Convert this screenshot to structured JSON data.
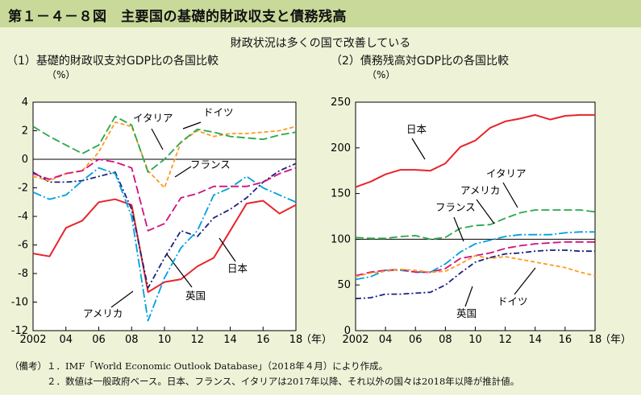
{
  "header": {
    "title": "第１－４－８図　主要国の基礎的財政収支と債務残高"
  },
  "subtitle": "財政状況は多くの国で改善している",
  "notes": [
    "（備考）１．IMF「World Economic Outlook Database」（2018年４月）により作成。",
    "　　　　２．数値は一般政府ベース。日本、フランス、イタリアは2017年以降、それ以外の国々は2018年以降が推計値。"
  ],
  "colors": {
    "japan": "#e8242b",
    "uk": "#1a237e",
    "usa": "#00a0dc",
    "germany": "#ff9a1e",
    "italy": "#2ba84a",
    "france": "#d0107e"
  },
  "chart_data": [
    {
      "type": "line",
      "title": "（1）基礎的財政収支対GDP比の各国比較",
      "unit": "（%）",
      "xlabel_suffix": "（年）",
      "x": [
        2002,
        2003,
        2004,
        2005,
        2006,
        2007,
        2008,
        2009,
        2010,
        2011,
        2012,
        2013,
        2014,
        2015,
        2016,
        2017,
        2018
      ],
      "xticks": [
        2002,
        2004,
        2006,
        2008,
        2010,
        2012,
        2014,
        2016,
        2018
      ],
      "xtick_labels": [
        "2002",
        "04",
        "06",
        "08",
        "10",
        "12",
        "14",
        "16",
        "18"
      ],
      "ylim": [
        -12,
        4
      ],
      "yticks": [
        4,
        2,
        0,
        -2,
        -4,
        -6,
        -8,
        -10,
        -12
      ],
      "reference_line": 0,
      "series": [
        {
          "name": "日本",
          "key": "japan",
          "dash": "solid",
          "values": [
            -6.6,
            -6.8,
            -4.8,
            -4.3,
            -3.0,
            -2.8,
            -3.2,
            -9.3,
            -8.6,
            -8.4,
            -7.5,
            -6.9,
            -5.0,
            -3.1,
            -2.9,
            -3.8,
            -3.2
          ]
        },
        {
          "name": "英国",
          "key": "uk",
          "dash": "dashdot",
          "values": [
            -0.9,
            -1.6,
            -1.6,
            -1.5,
            -1.2,
            -0.9,
            -3.5,
            -9.0,
            -6.9,
            -5.0,
            -5.4,
            -4.1,
            -3.5,
            -2.7,
            -1.6,
            -0.8,
            -0.3
          ]
        },
        {
          "name": "アメリカ",
          "key": "usa",
          "dash": "longdashdot",
          "values": [
            -2.3,
            -2.8,
            -2.5,
            -1.5,
            -0.6,
            -1.0,
            -4.0,
            -11.3,
            -8.3,
            -6.2,
            -5.0,
            -2.5,
            -2.0,
            -1.2,
            -2.0,
            -2.5,
            -3.0
          ]
        },
        {
          "name": "ドイツ",
          "key": "germany",
          "dash": "dash",
          "values": [
            -1.2,
            -1.5,
            -1.0,
            -0.8,
            0.5,
            2.6,
            2.3,
            -0.8,
            -2.0,
            1.2,
            2.0,
            1.6,
            1.8,
            1.8,
            1.9,
            2.0,
            2.3
          ]
        },
        {
          "name": "イタリア",
          "key": "italy",
          "dash": "longdash",
          "values": [
            2.3,
            1.6,
            1.0,
            0.4,
            1.0,
            3.0,
            2.4,
            -0.9,
            0.0,
            1.2,
            2.1,
            1.9,
            1.6,
            1.5,
            1.4,
            1.7,
            1.9
          ]
        },
        {
          "name": "フランス",
          "key": "france",
          "dash": "longdash",
          "values": [
            -1.0,
            -1.4,
            -1.0,
            -0.8,
            0.0,
            -0.2,
            -0.6,
            -5.0,
            -4.5,
            -2.7,
            -2.4,
            -1.9,
            -1.9,
            -1.9,
            -1.6,
            -1.0,
            -0.6
          ]
        }
      ]
    },
    {
      "type": "line",
      "title": "（2）債務残高対GDP比の各国比較",
      "unit": "（%）",
      "xlabel_suffix": "（年）",
      "x": [
        2002,
        2003,
        2004,
        2005,
        2006,
        2007,
        2008,
        2009,
        2010,
        2011,
        2012,
        2013,
        2014,
        2015,
        2016,
        2017,
        2018
      ],
      "xticks": [
        2002,
        2004,
        2006,
        2008,
        2010,
        2012,
        2014,
        2016,
        2018
      ],
      "xtick_labels": [
        "2002",
        "04",
        "06",
        "08",
        "10",
        "12",
        "14",
        "16",
        "18"
      ],
      "ylim": [
        0,
        250
      ],
      "yticks": [
        250,
        200,
        150,
        100,
        50,
        0
      ],
      "reference_line": 100,
      "series": [
        {
          "name": "日本",
          "key": "japan",
          "dash": "solid",
          "values": [
            157,
            163,
            171,
            176,
            176,
            175,
            183,
            201,
            208,
            222,
            229,
            232,
            236,
            231,
            235,
            236,
            236
          ]
        },
        {
          "name": "イタリア",
          "key": "italy",
          "dash": "longdash",
          "values": [
            102,
            101,
            101,
            103,
            104,
            100,
            102,
            112,
            115,
            116,
            123,
            129,
            132,
            132,
            132,
            132,
            130
          ]
        },
        {
          "name": "アメリカ",
          "key": "usa",
          "dash": "longdashdot",
          "values": [
            56,
            59,
            66,
            66,
            64,
            64,
            73,
            86,
            95,
            99,
            103,
            105,
            105,
            105,
            107,
            108,
            108
          ]
        },
        {
          "name": "フランス",
          "key": "france",
          "dash": "longdash",
          "values": [
            60,
            64,
            66,
            67,
            64,
            64,
            68,
            79,
            82,
            85,
            90,
            93,
            95,
            96,
            97,
            97,
            97
          ]
        },
        {
          "name": "ドイツ",
          "key": "germany",
          "dash": "dash",
          "values": [
            59,
            63,
            65,
            67,
            66,
            64,
            65,
            73,
            82,
            79,
            81,
            78,
            75,
            72,
            69,
            64,
            60
          ]
        },
        {
          "name": "英国",
          "key": "uk",
          "dash": "dashdot",
          "values": [
            35,
            36,
            40,
            40,
            41,
            42,
            50,
            63,
            75,
            80,
            84,
            85,
            87,
            88,
            88,
            87,
            87
          ]
        }
      ]
    }
  ]
}
